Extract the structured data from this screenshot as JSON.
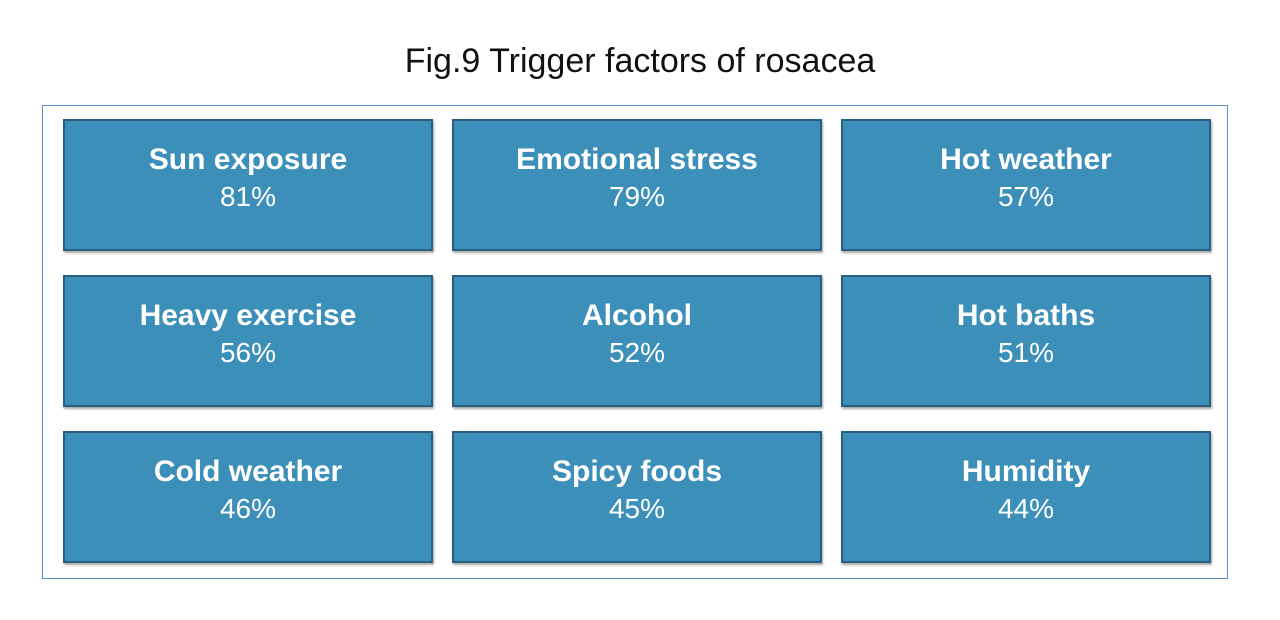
{
  "title": "Fig.9 Trigger factors of rosacea",
  "colors": {
    "tile_fill": "#3b8fb9",
    "tile_border": "#2a5f80",
    "frame_border": "#5b8fd1",
    "text": "#ffffff"
  },
  "factors": [
    {
      "label": "Sun exposure",
      "value": "81%"
    },
    {
      "label": "Emotional stress",
      "value": "79%"
    },
    {
      "label": "Hot weather",
      "value": "57%"
    },
    {
      "label": "Heavy exercise",
      "value": "56%"
    },
    {
      "label": "Alcohol",
      "value": "52%"
    },
    {
      "label": "Hot baths",
      "value": "51%"
    },
    {
      "label": "Cold weather",
      "value": "46%"
    },
    {
      "label": "Spicy foods",
      "value": "45%"
    },
    {
      "label": "Humidity",
      "value": "44%"
    }
  ]
}
